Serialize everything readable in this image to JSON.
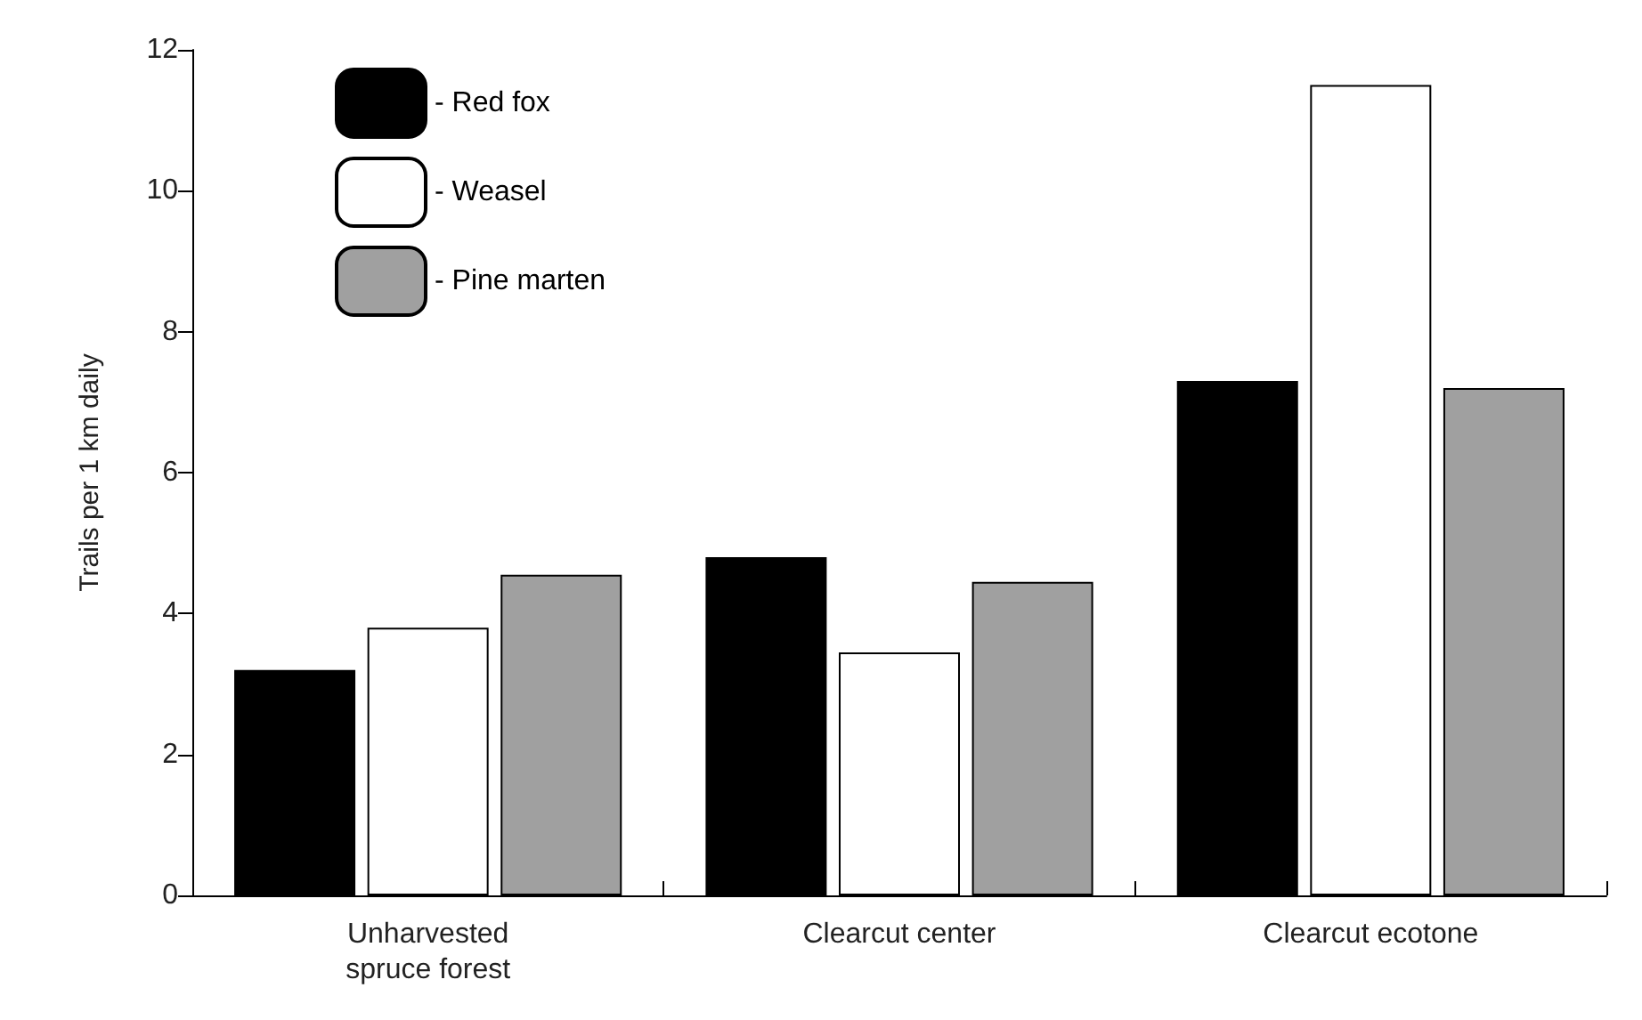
{
  "chart_data": {
    "type": "bar",
    "ylabel": "Trails per 1 km daily",
    "categories": [
      "Unharvested\nspruce forest",
      "Clearcut center",
      "Clearcut ecotone"
    ],
    "series": [
      {
        "name": "- Red fox",
        "color": "#000000",
        "values": [
          3.2,
          4.8,
          7.3
        ]
      },
      {
        "name": "- Weasel",
        "color": "#ffffff",
        "values": [
          3.8,
          3.45,
          11.5
        ]
      },
      {
        "name": "- Pine marten",
        "color": "#a0a0a0",
        "values": [
          4.55,
          4.45,
          7.2
        ]
      }
    ],
    "ylim": [
      0,
      12
    ],
    "yticks": [
      0,
      2,
      4,
      6,
      8,
      10,
      12
    ],
    "grid": false,
    "legend": "top left"
  }
}
